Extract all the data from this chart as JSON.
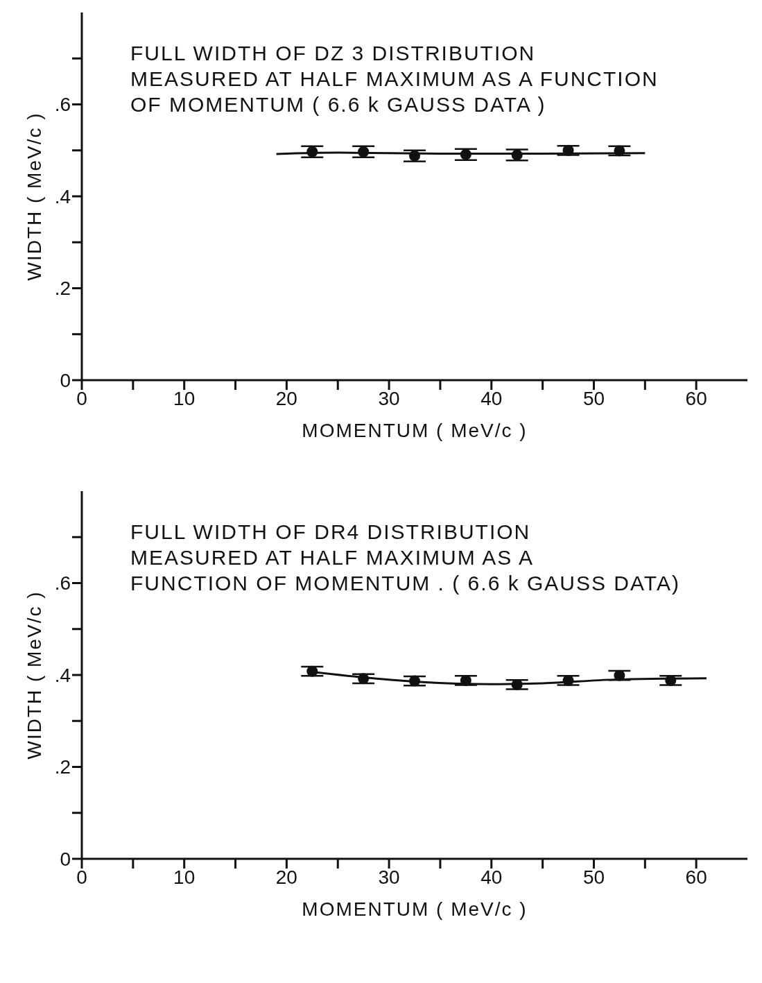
{
  "chart_data": [
    {
      "type": "scatter",
      "title": "FULL WIDTH OF DZ 3 DISTRIBUTION\nMEASURED AT HALF MAXIMUM AS A FUNCTION\nOF MOMENTUM ( 6.6 k GAUSS DATA )",
      "xlabel": "MOMENTUM ( MeV/c )",
      "ylabel": "WIDTH ( MeV/c )",
      "xlim": [
        0,
        65
      ],
      "xticks": [
        0,
        {
          "value": 5,
          "label": null
        },
        10,
        {
          "value": 15,
          "label": null
        },
        20,
        {
          "value": 25,
          "label": null
        },
        30,
        {
          "value": 35,
          "label": null
        },
        40,
        {
          "value": 45,
          "label": null
        },
        50,
        {
          "value": 55,
          "label": null
        },
        60
      ],
      "ylim": [
        0,
        0.8
      ],
      "yticks": [
        0,
        {
          "value": 0.1,
          "label": null
        },
        {
          "value": 0.2,
          "label": ".2"
        },
        {
          "value": 0.3,
          "label": null
        },
        {
          "value": 0.4,
          "label": ".4"
        },
        {
          "value": 0.5,
          "label": null
        },
        {
          "value": 0.6,
          "label": ".6"
        },
        {
          "value": 0.7,
          "label": null
        }
      ],
      "series": [
        {
          "marker": "circle",
          "color": "#111111",
          "x": [
            22.5,
            27.5,
            32.5,
            37.5,
            42.5,
            47.5,
            52.5
          ],
          "values": [
            0.497,
            0.497,
            0.488,
            0.491,
            0.49,
            0.5,
            0.499
          ],
          "errors": [
            0.012,
            0.012,
            0.012,
            0.012,
            0.012,
            0.01,
            0.01
          ]
        },
        {
          "type": "line",
          "color": "#111111",
          "line_style": "solid",
          "x": [
            19,
            25,
            35,
            45,
            55
          ],
          "values": [
            0.492,
            0.495,
            0.493,
            0.493,
            0.494
          ]
        }
      ]
    },
    {
      "type": "scatter",
      "title": "FULL WIDTH OF DR4 DISTRIBUTION\nMEASURED AT HALF MAXIMUM AS A\nFUNCTION OF MOMENTUM . ( 6.6 k GAUSS DATA)",
      "xlabel": "MOMENTUM ( MeV/c )",
      "ylabel": "WIDTH ( MeV/c )",
      "xlim": [
        0,
        65
      ],
      "xticks": [
        0,
        {
          "value": 5,
          "label": null
        },
        10,
        {
          "value": 15,
          "label": null
        },
        20,
        {
          "value": 25,
          "label": null
        },
        30,
        {
          "value": 35,
          "label": null
        },
        40,
        {
          "value": 45,
          "label": null
        },
        50,
        {
          "value": 55,
          "label": null
        },
        60
      ],
      "ylim": [
        0,
        0.8
      ],
      "yticks": [
        0,
        {
          "value": 0.1,
          "label": null
        },
        {
          "value": 0.2,
          "label": ".2"
        },
        {
          "value": 0.3,
          "label": null
        },
        {
          "value": 0.4,
          "label": ".4"
        },
        {
          "value": 0.5,
          "label": null
        },
        {
          "value": 0.6,
          "label": ".6"
        },
        {
          "value": 0.7,
          "label": null
        }
      ],
      "series": [
        {
          "marker": "circle",
          "color": "#111111",
          "x": [
            22.5,
            27.5,
            32.5,
            37.5,
            42.5,
            47.5,
            52.5,
            57.5
          ],
          "values": [
            0.408,
            0.392,
            0.387,
            0.388,
            0.379,
            0.388,
            0.399,
            0.388
          ],
          "errors": [
            0.01,
            0.01,
            0.01,
            0.01,
            0.01,
            0.01,
            0.01,
            0.01
          ]
        },
        {
          "type": "line",
          "color": "#111111",
          "line_style": "solid",
          "x": [
            22,
            27,
            33,
            40,
            45,
            52,
            61
          ],
          "values": [
            0.408,
            0.396,
            0.385,
            0.38,
            0.382,
            0.39,
            0.393
          ]
        }
      ]
    }
  ]
}
